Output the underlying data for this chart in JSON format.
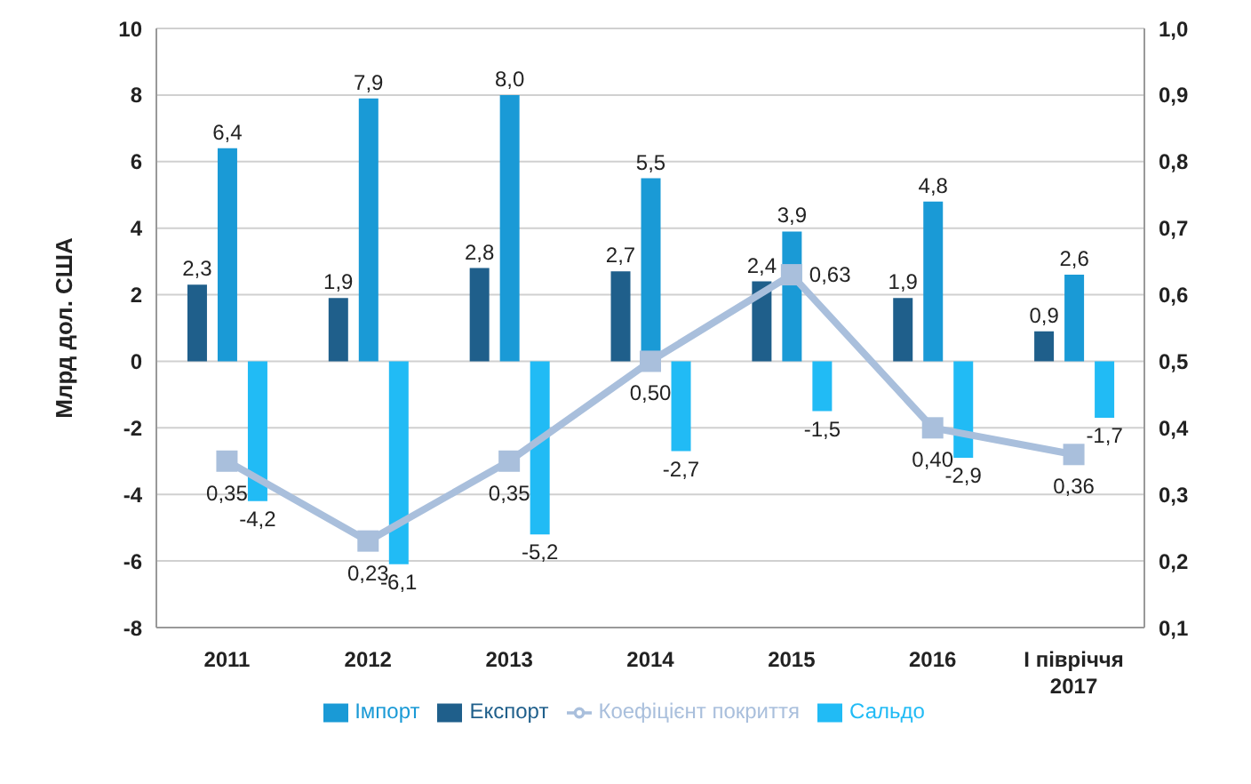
{
  "chart_data": {
    "type": "bar",
    "ylabel": "Млрд дол. США",
    "categories": [
      "2011",
      "2012",
      "2013",
      "2014",
      "2015",
      "2016",
      "I півріччя 2017"
    ],
    "series": [
      {
        "name": "Експорт",
        "color": "#1f5f8b",
        "values": [
          2.3,
          1.9,
          2.8,
          2.7,
          2.4,
          1.9,
          0.9
        ],
        "value_labels": [
          "2,3",
          "1,9",
          "2,8",
          "2,7",
          "2,4",
          "1,9",
          "0,9"
        ]
      },
      {
        "name": "Імпорт",
        "color": "#1a9ad6",
        "values": [
          6.4,
          7.9,
          8.0,
          5.5,
          3.9,
          4.8,
          2.6
        ],
        "value_labels": [
          "6,4",
          "7,9",
          "8,0",
          "5,5",
          "3,9",
          "4,8",
          "2,6"
        ]
      },
      {
        "name": "Сальдо",
        "color": "#21bbf5",
        "values": [
          -4.2,
          -6.1,
          -5.2,
          -2.7,
          -1.5,
          -2.9,
          -1.7
        ],
        "value_labels": [
          "-4,2",
          "-6,1",
          "-5,2",
          "-2,7",
          "-1,5",
          "-2,9",
          "-1,7"
        ]
      },
      {
        "name": "Коефіцієнт покриття",
        "type": "line",
        "axis": "y2",
        "color": "#a9bfdc",
        "marker": "square",
        "values": [
          0.35,
          0.23,
          0.35,
          0.5,
          0.63,
          0.4,
          0.36
        ],
        "value_labels": [
          "0,35",
          "0,23",
          "0,35",
          "0,50",
          "0,63",
          "0,40",
          "0,36"
        ]
      }
    ],
    "ylim": [
      -8,
      10
    ],
    "yticks": [
      -8,
      -6,
      -4,
      -2,
      0,
      2,
      4,
      6,
      8,
      10
    ],
    "y2lim": [
      0.1,
      1.0
    ],
    "y2ticks": [
      {
        "value": 0.1,
        "label": "0,1"
      },
      {
        "value": 0.2,
        "label": "0,2"
      },
      {
        "value": 0.3,
        "label": "0,3"
      },
      {
        "value": 0.4,
        "label": "0,4"
      },
      {
        "value": 0.5,
        "label": "0,5"
      },
      {
        "value": 0.6,
        "label": "0,6"
      },
      {
        "value": 0.7,
        "label": "0,7"
      },
      {
        "value": 0.8,
        "label": "0,8"
      },
      {
        "value": 0.9,
        "label": "0,9"
      },
      {
        "value": 1.0,
        "label": "1,0"
      }
    ],
    "grid": "y",
    "legend": "bottom"
  }
}
